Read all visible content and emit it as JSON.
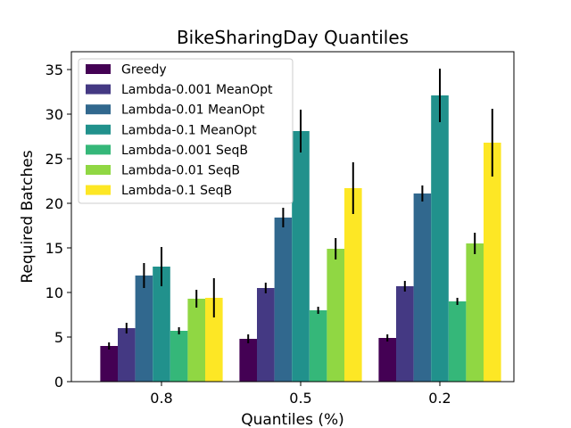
{
  "chart_data": {
    "type": "bar",
    "title": "BikeSharingDay Quantiles",
    "xlabel": "Quantiles (%)",
    "ylabel": "Required Batches",
    "categories": [
      "0.8",
      "0.5",
      "0.2"
    ],
    "ylim": [
      0,
      37
    ],
    "yticks": [
      0,
      5,
      10,
      15,
      20,
      25,
      30,
      35
    ],
    "grid": false,
    "legend_position": "top-left",
    "series": [
      {
        "name": "Greedy",
        "color": "#440154",
        "values": [
          4.0,
          4.8,
          4.9
        ],
        "errors": [
          0.4,
          0.5,
          0.4
        ]
      },
      {
        "name": "Lambda-0.001 MeanOpt",
        "color": "#443983",
        "values": [
          6.0,
          10.5,
          10.7
        ],
        "errors": [
          0.6,
          0.6,
          0.6
        ]
      },
      {
        "name": "Lambda-0.01 MeanOpt",
        "color": "#31688e",
        "values": [
          11.9,
          18.4,
          21.1
        ],
        "errors": [
          1.4,
          1.1,
          0.9
        ]
      },
      {
        "name": "Lambda-0.1 MeanOpt",
        "color": "#21918c",
        "values": [
          12.9,
          28.1,
          32.1
        ],
        "errors": [
          2.2,
          2.4,
          3.0
        ]
      },
      {
        "name": "Lambda-0.001 SeqB",
        "color": "#35b779",
        "values": [
          5.7,
          8.0,
          9.0
        ],
        "errors": [
          0.4,
          0.4,
          0.4
        ]
      },
      {
        "name": "Lambda-0.01 SeqB",
        "color": "#90d743",
        "values": [
          9.3,
          14.9,
          15.5
        ],
        "errors": [
          1.0,
          1.2,
          1.2
        ]
      },
      {
        "name": "Lambda-0.1 SeqB",
        "color": "#fde725",
        "values": [
          9.4,
          21.7,
          26.8
        ],
        "errors": [
          2.2,
          2.9,
          3.8
        ]
      }
    ]
  }
}
